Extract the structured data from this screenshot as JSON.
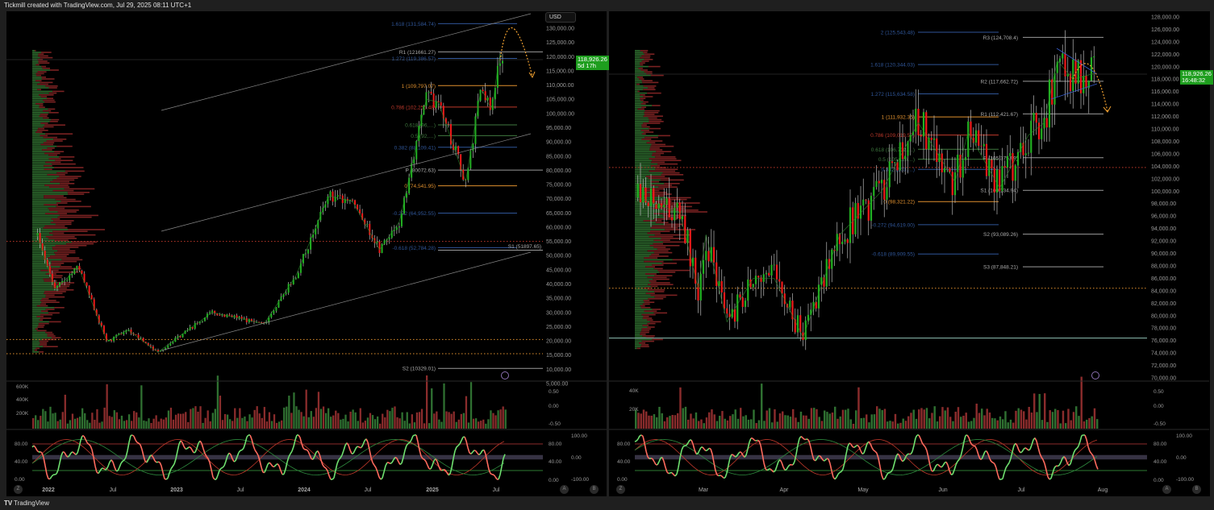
{
  "header": {
    "caption": "Tickmill created with TradingView.com, Jul 29, 2025 08:11 UTC+1"
  },
  "footer": {
    "brand": "TradingView",
    "logo_text": "TV"
  },
  "colors": {
    "bg": "#000000",
    "up": "#22b022",
    "down": "#f01a1a",
    "wick": "#b8b8b8",
    "fib_blue": "#2f5597",
    "fib_orange": "#e0902e",
    "fib_red": "#c0392b",
    "fib_green": "#3f7a3f",
    "pivot": "#9a9a9a",
    "price_tag": "#1e9e1e"
  },
  "left_chart": {
    "currency_button": "USD",
    "last_price": "118,926.26",
    "countdown": "5d 17h",
    "price_ticks": [
      "130,000.00",
      "125,000.00",
      "120,000.00",
      "115,000.00",
      "110,000.00",
      "105,000.00",
      "100,000.00",
      "95,000.00",
      "90,000.00",
      "85,000.00",
      "80,000.00",
      "75,000.00",
      "70,000.00",
      "65,000.00",
      "60,000.00",
      "55,000.00",
      "50,000.00",
      "45,000.00",
      "40,000.00",
      "35,000.00",
      "30,000.00",
      "25,000.00",
      "20,000.00",
      "15,000.00",
      "10,000.00",
      "5,000.00"
    ],
    "time_ticks": [
      "2022",
      "Jul",
      "2023",
      "Jul",
      "2024",
      "Jul",
      "2025",
      "Jul"
    ],
    "price_path": [
      [
        "2021-12-01",
        57000
      ],
      [
        "2022-01-20",
        38000
      ],
      [
        "2022-03-28",
        46000
      ],
      [
        "2022-06-18",
        19500
      ],
      [
        "2022-08-15",
        24000
      ],
      [
        "2022-11-10",
        16000
      ],
      [
        "2023-01-20",
        22500
      ],
      [
        "2023-04-14",
        30000
      ],
      [
        "2023-09-10",
        26000
      ],
      [
        "2023-12-10",
        43000
      ],
      [
        "2024-03-12",
        71000
      ],
      [
        "2024-05-20",
        69000
      ],
      [
        "2024-08-05",
        52000
      ],
      [
        "2024-10-01",
        62000
      ],
      [
        "2024-12-16",
        105000
      ],
      [
        "2025-01-20",
        104000
      ],
      [
        "2025-04-08",
        76000
      ],
      [
        "2025-05-22",
        109000
      ],
      [
        "2025-06-22",
        101000
      ],
      [
        "2025-07-14",
        121000
      ],
      [
        "2025-07-28",
        119000
      ]
    ],
    "levels": [
      {
        "label": "1.618 (131,584.74)",
        "price": 131584.74,
        "kind": "fib_blue"
      },
      {
        "label": "1.272 (119,386.57)",
        "price": 119386.57,
        "kind": "fib_blue"
      },
      {
        "label": "1 (109,797.07)",
        "price": 109797.07,
        "kind": "fib_orange"
      },
      {
        "label": "0.786 (102,255.48)",
        "price": 102255.48,
        "kind": "fib_red"
      },
      {
        "label": "0.618 (96,…)",
        "price": 96000,
        "kind": "fib_green"
      },
      {
        "label": "0.5 (92,…)",
        "price": 92200,
        "kind": "fib_green"
      },
      {
        "label": "0.382 (88,109.41)",
        "price": 88109.41,
        "kind": "fib_blue"
      },
      {
        "label": "0 (74,541.95)",
        "price": 74541.95,
        "kind": "fib_orange"
      },
      {
        "label": "-0.272 (64,952.55)",
        "price": 64952.55,
        "kind": "fib_blue"
      },
      {
        "label": "-0.618 (52,784.28)",
        "price": 52784.28,
        "kind": "fib_blue"
      }
    ],
    "pivots": [
      {
        "label": "R1 (121661.27)",
        "price": 121661.27
      },
      {
        "label": "P (80072.63)",
        "price": 80072.63
      },
      {
        "label": "S1 (51897.65)",
        "price": 51897.65
      },
      {
        "label": "S2 (10329.01)",
        "price": 10329.01
      }
    ],
    "dotted_lines": [
      {
        "price": 55000,
        "color": "#c0392b"
      },
      {
        "price": 20500,
        "color": "#e0902e"
      },
      {
        "price": 15500,
        "color": "#e0902e"
      }
    ],
    "volume_ticks": [
      "600K",
      "400K",
      "200K"
    ],
    "osc_ticks": [
      "80.00",
      "40.00",
      "0.00"
    ],
    "right_scale_a": [
      "0.50",
      "0.00",
      "-0.50"
    ],
    "right_scale_b": [
      "80.00",
      "40.00",
      "0.00"
    ],
    "right_scale_c": [
      "100.00",
      "0.00",
      "-100.00"
    ]
  },
  "right_chart": {
    "last_price": "118,926.26",
    "countdown": "16:48:32",
    "price_ticks": [
      "128,000.00",
      "126,000.00",
      "124,000.00",
      "122,000.00",
      "120,000.00",
      "118,000.00",
      "116,000.00",
      "114,000.00",
      "112,000.00",
      "110,000.00",
      "108,000.00",
      "106,000.00",
      "104,000.00",
      "102,000.00",
      "100,000.00",
      "98,000.00",
      "96,000.00",
      "94,000.00",
      "92,000.00",
      "90,000.00",
      "88,000.00",
      "86,000.00",
      "84,000.00",
      "82,000.00",
      "80,000.00",
      "78,000.00",
      "76,000.00",
      "74,000.00",
      "72,000.00",
      "70,000.00"
    ],
    "time_ticks": [
      "Mar",
      "Apr",
      "May",
      "Jun",
      "Jul",
      "Aug"
    ],
    "price_path": [
      [
        "2025-02-04",
        99000
      ],
      [
        "2025-02-20",
        96500
      ],
      [
        "2025-02-27",
        84500
      ],
      [
        "2025-03-02",
        93000
      ],
      [
        "2025-03-10",
        79000
      ],
      [
        "2025-03-20",
        86000
      ],
      [
        "2025-03-28",
        86000
      ],
      [
        "2025-04-08",
        76500
      ],
      [
        "2025-04-22",
        93000
      ],
      [
        "2025-05-08",
        100000
      ],
      [
        "2025-05-22",
        111000
      ],
      [
        "2025-06-05",
        101500
      ],
      [
        "2025-06-10",
        109500
      ],
      [
        "2025-06-22",
        100500
      ],
      [
        "2025-07-03",
        109000
      ],
      [
        "2025-07-09",
        111000
      ],
      [
        "2025-07-14",
        121000
      ],
      [
        "2025-07-20",
        118000
      ],
      [
        "2025-07-28",
        118900
      ]
    ],
    "levels": [
      {
        "label": "2 (125,543.48)",
        "price": 125543.48,
        "kind": "fib_blue"
      },
      {
        "label": "1.618 (120,344.03)",
        "price": 120344.03,
        "kind": "fib_blue"
      },
      {
        "label": "1.272 (115,634.58)",
        "price": 115634.58,
        "kind": "fib_blue"
      },
      {
        "label": "1 (111,932.35)",
        "price": 111932.35,
        "kind": "fib_orange"
      },
      {
        "label": "0.786 (109,019.57)",
        "price": 109019.57,
        "kind": "fib_red"
      },
      {
        "label": "0.618 (106,732.…)",
        "price": 106732,
        "kind": "fib_green"
      },
      {
        "label": "0.5 (105,126…)",
        "price": 105126,
        "kind": "fib_green"
      },
      {
        "label": "0.382 (103,…)",
        "price": 103500,
        "kind": "fib_blue"
      },
      {
        "label": "0 (98,321.22)",
        "price": 98321.22,
        "kind": "fib_orange"
      },
      {
        "label": "-0.272 (94,619.00)",
        "price": 94619.0,
        "kind": "fib_blue"
      },
      {
        "label": "-0.618 (89,909.55)",
        "price": 89909.55,
        "kind": "fib_blue"
      }
    ],
    "pivots": [
      {
        "label": "R3 (124,708.4)",
        "price": 124708.4
      },
      {
        "label": "R2 (117,662.72)",
        "price": 117662.72
      },
      {
        "label": "R1 (112,421.67)",
        "price": 112421.67
      },
      {
        "label": "P (105,375.99)",
        "price": 105375.99
      },
      {
        "label": "S1 (100,134.94)",
        "price": 100134.94
      },
      {
        "label": "S2 (93,089.26)",
        "price": 93089.26
      },
      {
        "label": "S3 (87,848.21)",
        "price": 87848.21
      }
    ],
    "dotted_lines": [
      {
        "price": 103800,
        "color": "#c0392b"
      },
      {
        "price": 84400,
        "color": "#e0902e"
      }
    ],
    "solid_lines": [
      {
        "price": 76400,
        "color": "#8fc1b5"
      }
    ],
    "volume_ticks": [
      "40K",
      "20K"
    ],
    "osc_ticks": [
      "80.00",
      "40.00",
      "0.00"
    ],
    "right_scale_a": [
      "0.50",
      "0.00",
      "-0.50"
    ],
    "right_scale_b": [
      "80.00",
      "40.00",
      "0.00"
    ],
    "right_scale_c": [
      "100.00",
      "0.00",
      "-100.00"
    ]
  },
  "axis_buttons": {
    "zoom": "Z",
    "auto": "A",
    "log": "B"
  }
}
